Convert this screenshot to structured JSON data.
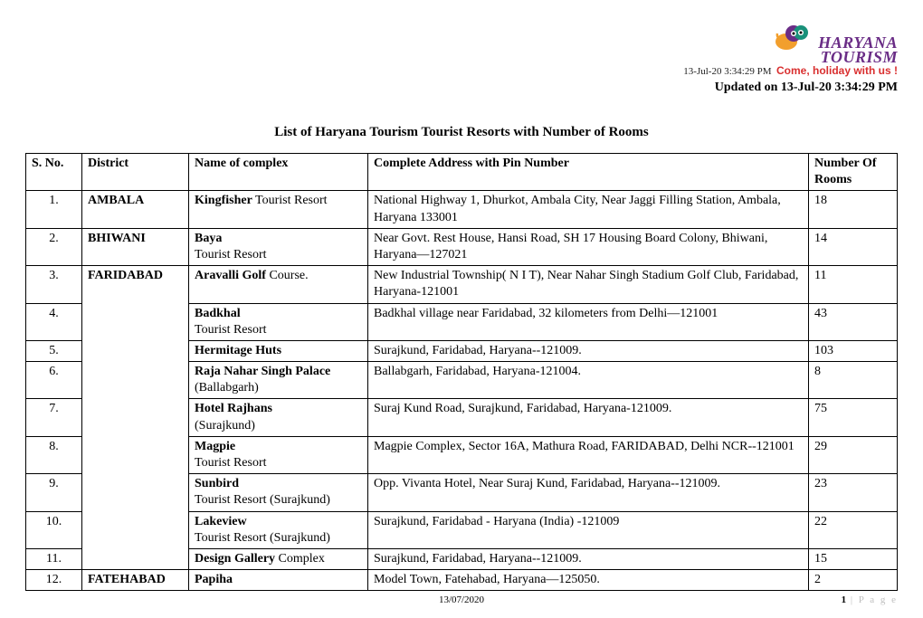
{
  "brand": {
    "line1": "HARYANA",
    "line2": "TOURISM",
    "tagline": "Come, holiday with us !",
    "tiny_stamp": "13-Jul-20 3:34:29 PM"
  },
  "updated_line": "Updated on 13-Jul-20 3:34:29 PM",
  "title": "List of Haryana Tourism Tourist Resorts with Number of Rooms",
  "columns": {
    "sno": "S. No.",
    "district": "District",
    "name": "Name of complex",
    "address": "Complete Address with Pin Number",
    "rooms": "Number Of Rooms"
  },
  "rows": [
    {
      "sno": "1.",
      "district": "AMBALA",
      "district_rowspan": 1,
      "name_bold": "Kingfisher",
      "name_rest": " Tourist Resort",
      "address": "National Highway 1, Dhurkot, Ambala City, Near Jaggi Filling Station, Ambala, Haryana 133001",
      "rooms": "18"
    },
    {
      "sno": "2.",
      "district": "BHIWANI",
      "district_rowspan": 1,
      "name_bold": "Baya",
      "name_rest": "\nTourist Resort",
      "address": "Near Govt. Rest House, Hansi Road, SH 17 Housing Board Colony, Bhiwani, Haryana—127021",
      "rooms": "14"
    },
    {
      "sno": "3.",
      "district": "FARIDABAD",
      "district_rowspan": 9,
      "name_bold": "Aravalli Golf",
      "name_rest": " Course.",
      "address": "New Industrial Township( N I T), Near Nahar Singh Stadium Golf Club, Faridabad, Haryana-121001",
      "rooms": "11"
    },
    {
      "sno": "4.",
      "name_bold": "Badkhal",
      "name_rest": "\nTourist Resort",
      "address": "Badkhal village near Faridabad, 32 kilometers from Delhi—121001",
      "rooms": "43"
    },
    {
      "sno": "5.",
      "name_bold": "Hermitage Huts",
      "name_rest": "",
      "address": "Surajkund, Faridabad, Haryana--121009.",
      "rooms": "103"
    },
    {
      "sno": "6.",
      "name_bold": "Raja Nahar Singh Palace",
      "name_rest": "\n(Ballabgarh)",
      "address": "Ballabgarh, Faridabad, Haryana-121004.",
      "rooms": "8"
    },
    {
      "sno": "7.",
      "name_bold": "Hotel Rajhans",
      "name_rest": "\n(Surajkund)",
      "address": "Suraj Kund Road, Surajkund, Faridabad, Haryana-121009.",
      "rooms": "75"
    },
    {
      "sno": "8.",
      "name_bold": "Magpie",
      "name_rest": "\nTourist Resort",
      "address": "Magpie Complex, Sector 16A, Mathura Road, FARIDABAD, Delhi NCR--121001",
      "rooms": "29"
    },
    {
      "sno": "9.",
      "name_bold": "Sunbird",
      "name_rest": "\nTourist Resort (Surajkund)",
      "address": "Opp. Vivanta Hotel, Near Suraj Kund, Faridabad, Haryana--121009.",
      "rooms": "23"
    },
    {
      "sno": "10.",
      "name_bold": "Lakeview",
      "name_rest": "\nTourist Resort (Surajkund)",
      "address": "Surajkund, Faridabad - Haryana (India) -121009",
      "rooms": "22"
    },
    {
      "sno": "11.",
      "name_bold": "Design Gallery",
      "name_rest": " Complex",
      "address": "Surajkund, Faridabad, Haryana--121009.",
      "rooms": "15"
    },
    {
      "sno": "12.",
      "district": "FATEHABAD",
      "district_rowspan": 1,
      "name_bold": "Papiha",
      "name_rest": "",
      "address": "Model Town, Fatehabad, Haryana—125050.",
      "rooms": "2"
    }
  ],
  "footer": {
    "date": "13/07/2020",
    "page_num": "1",
    "page_label": " | P a g e"
  }
}
